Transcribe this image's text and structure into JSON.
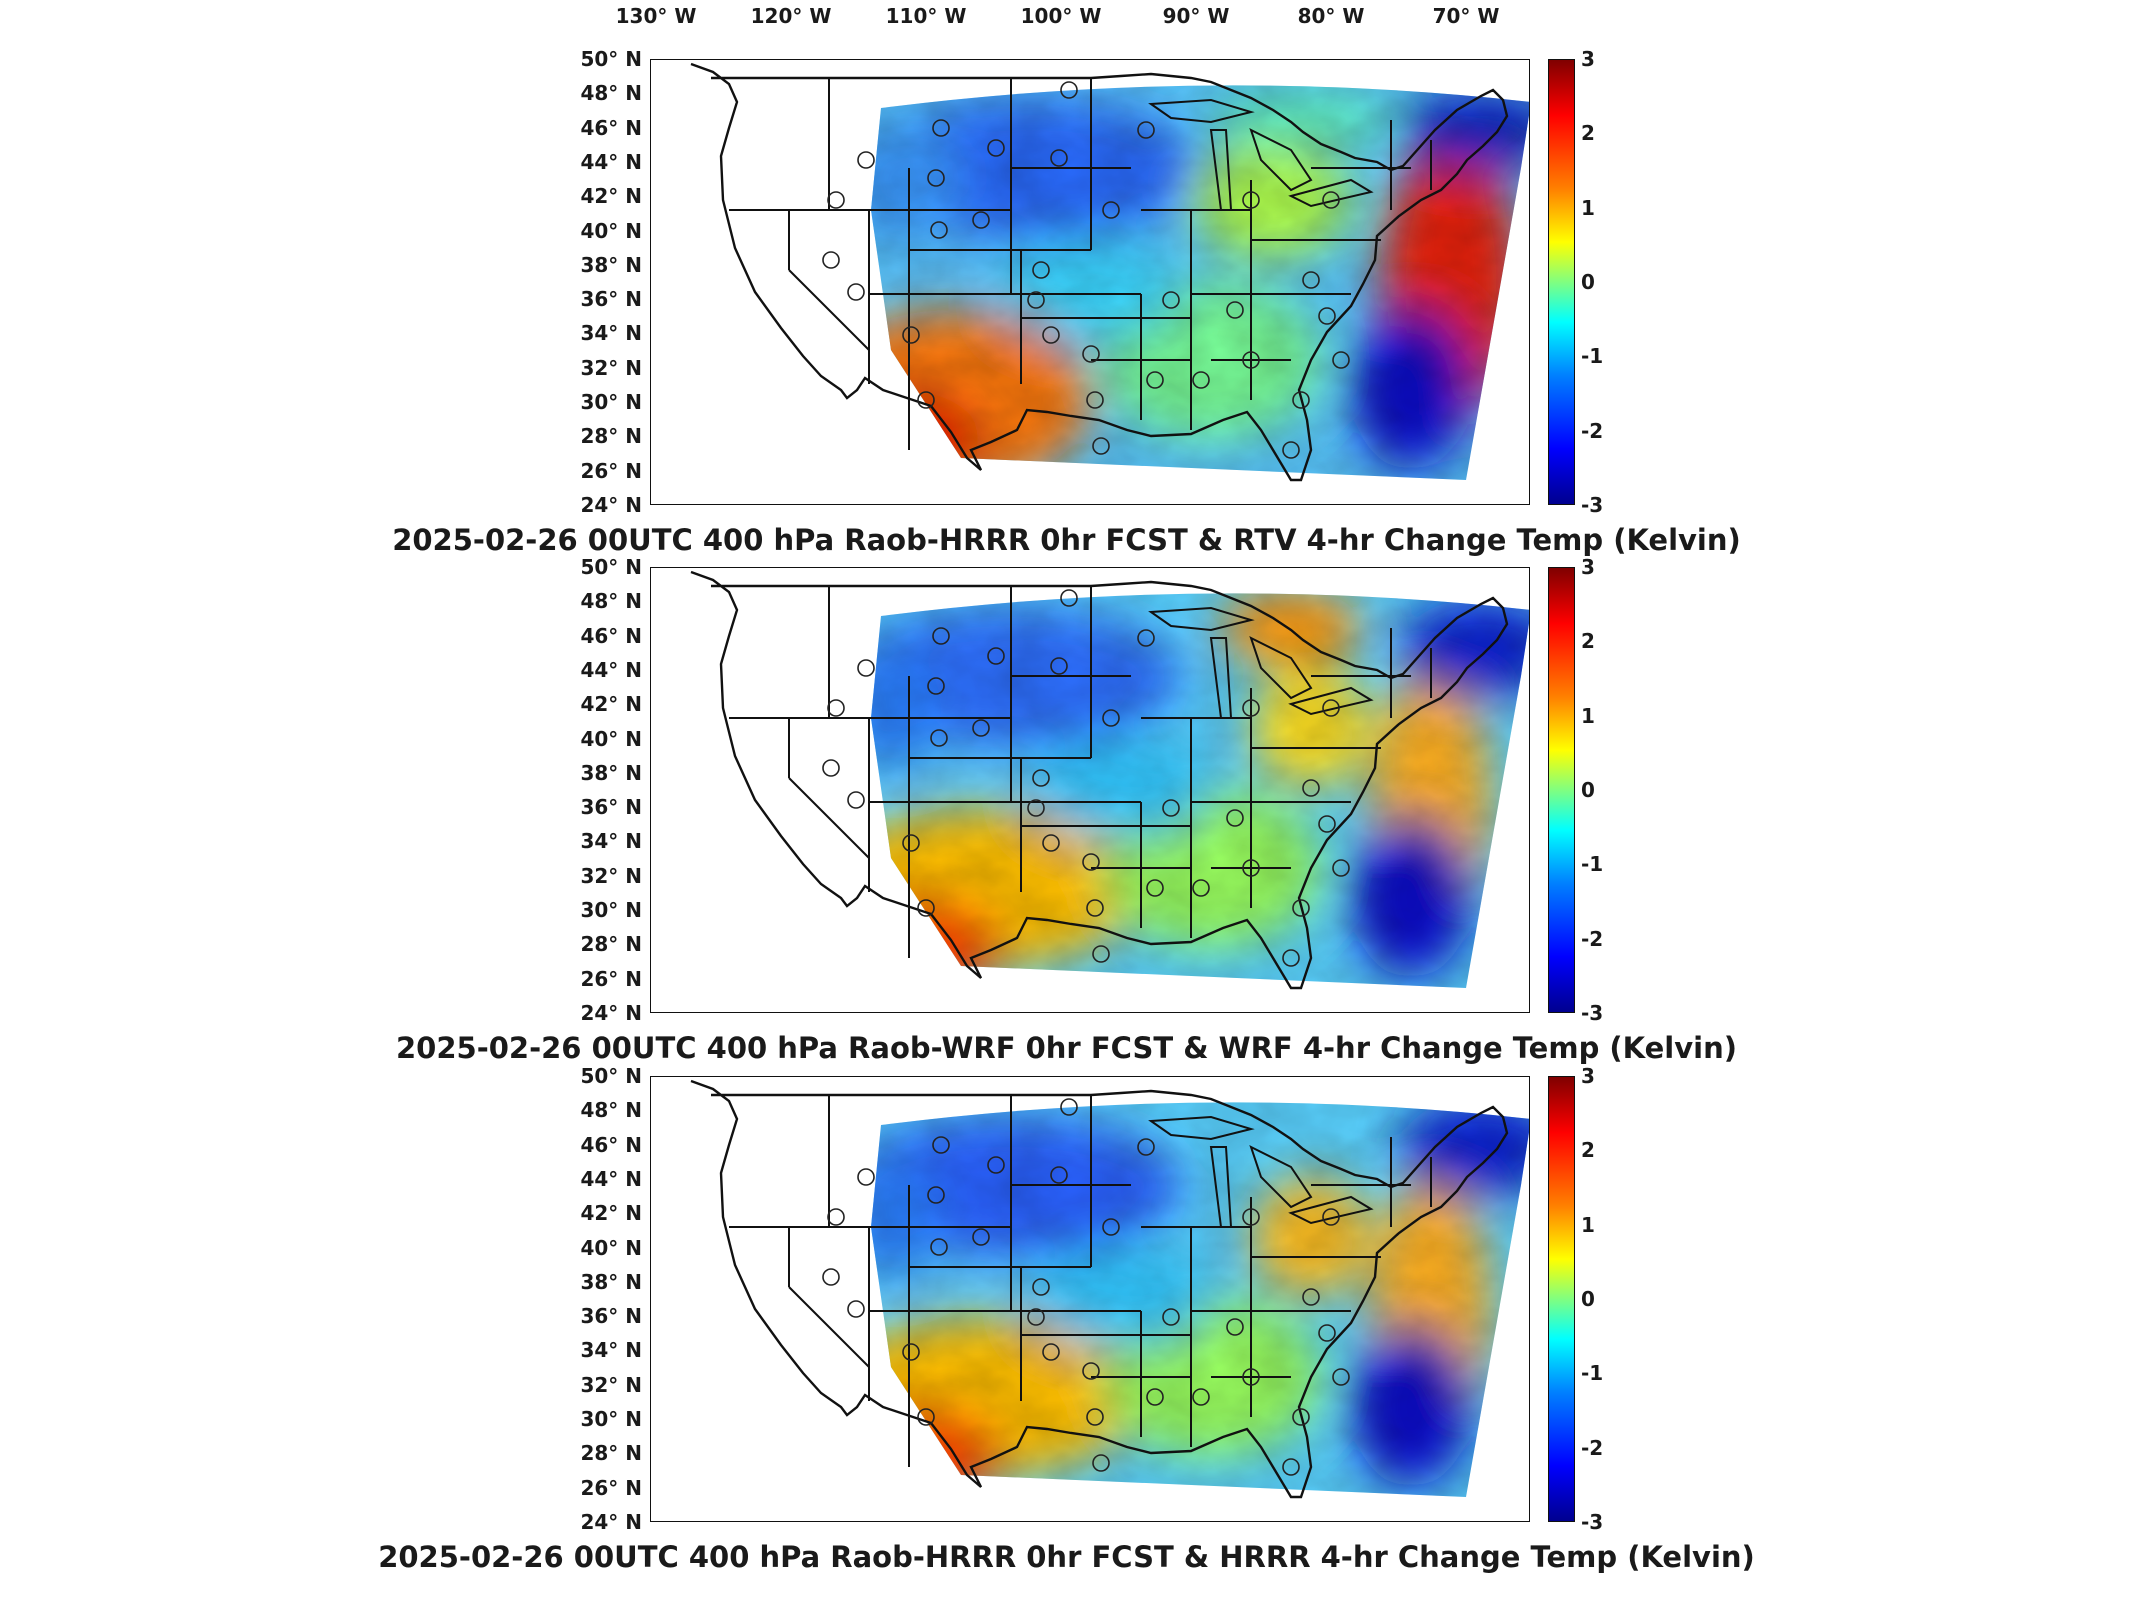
{
  "longitude_labels": [
    "130° W",
    "120° W",
    "110° W",
    "100° W",
    "90° W",
    "80° W",
    "70° W"
  ],
  "latitude_labels": [
    "50° N",
    "48° N",
    "46° N",
    "44° N",
    "42° N",
    "40° N",
    "38° N",
    "36° N",
    "34° N",
    "32° N",
    "30° N",
    "28° N",
    "26° N",
    "24° N"
  ],
  "colorbar": {
    "ticks": [
      "3",
      "2",
      "1",
      "0",
      "-1",
      "-2",
      "-3"
    ],
    "units": "Kelvin",
    "colormap": [
      "#00008f",
      "#0000ff",
      "#0080ff",
      "#00ffff",
      "#80ff80",
      "#ffff00",
      "#ff8000",
      "#ff0000",
      "#800000"
    ]
  },
  "panels": [
    {
      "title": "2025-02-26 00UTC 400 hPa Raob-HRRR 0hr FCST & RTV 4-hr Change Temp (Kelvin)"
    },
    {
      "title": "2025-02-26 00UTC 400 hPa Raob-WRF 0hr FCST & WRF 4-hr Change Temp (Kelvin)"
    },
    {
      "title": "2025-02-26 00UTC 400 hPa Raob-HRRR 0hr FCST & HRRR 4-hr Change Temp (Kelvin)"
    }
  ]
}
